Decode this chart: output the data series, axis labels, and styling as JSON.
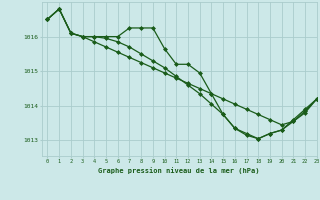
{
  "title": "Graphe pression niveau de la mer (hPa)",
  "background_color": "#cce8e8",
  "grid_color": "#aacccc",
  "line_color": "#1a5c1a",
  "marker_color": "#1a5c1a",
  "xlim": [
    -0.5,
    23
  ],
  "ylim": [
    1012.55,
    1017.0
  ],
  "yticks": [
    1013,
    1014,
    1015,
    1016
  ],
  "xticks": [
    0,
    1,
    2,
    3,
    4,
    5,
    6,
    7,
    8,
    9,
    10,
    11,
    12,
    13,
    14,
    15,
    16,
    17,
    18,
    19,
    20,
    21,
    22,
    23
  ],
  "series": [
    {
      "x": [
        0,
        1,
        2,
        3,
        4,
        5,
        6,
        7,
        8,
        9,
        10,
        11,
        12,
        13,
        14,
        15,
        16,
        17,
        18,
        19,
        20,
        21,
        22,
        23
      ],
      "y": [
        1016.5,
        1016.8,
        1016.1,
        1016.0,
        1015.85,
        1015.7,
        1015.55,
        1015.4,
        1015.25,
        1015.1,
        1014.95,
        1014.8,
        1014.65,
        1014.5,
        1014.35,
        1014.2,
        1014.05,
        1013.9,
        1013.75,
        1013.6,
        1013.45,
        1013.55,
        1013.8,
        1014.2
      ],
      "marker": "D",
      "markersize": 2.0,
      "linewidth": 0.9
    },
    {
      "x": [
        0,
        1,
        2,
        3,
        4,
        5,
        6,
        7,
        8,
        9,
        10,
        11,
        12,
        13,
        14,
        15,
        16,
        17,
        18,
        19,
        20,
        21,
        22,
        23
      ],
      "y": [
        1016.5,
        1016.8,
        1016.1,
        1016.0,
        1016.0,
        1016.0,
        1016.0,
        1016.25,
        1016.25,
        1016.25,
        1015.65,
        1015.2,
        1015.2,
        1014.95,
        1014.35,
        1013.75,
        1013.35,
        1013.2,
        1013.05,
        1013.2,
        1013.3,
        1013.6,
        1013.9,
        1014.2
      ],
      "marker": "D",
      "markersize": 2.0,
      "linewidth": 0.9
    },
    {
      "x": [
        0,
        1,
        2,
        3,
        4,
        5,
        6,
        7,
        8,
        9,
        10,
        11,
        12,
        13,
        14,
        15,
        16,
        17,
        18,
        19,
        20,
        21,
        22,
        23
      ],
      "y": [
        1016.5,
        1016.8,
        1016.1,
        1016.0,
        1016.0,
        1015.95,
        1015.85,
        1015.7,
        1015.5,
        1015.3,
        1015.1,
        1014.85,
        1014.6,
        1014.35,
        1014.05,
        1013.75,
        1013.35,
        1013.15,
        1013.05,
        1013.2,
        1013.3,
        1013.55,
        1013.85,
        1014.2
      ],
      "marker": "D",
      "markersize": 2.0,
      "linewidth": 0.9
    }
  ]
}
